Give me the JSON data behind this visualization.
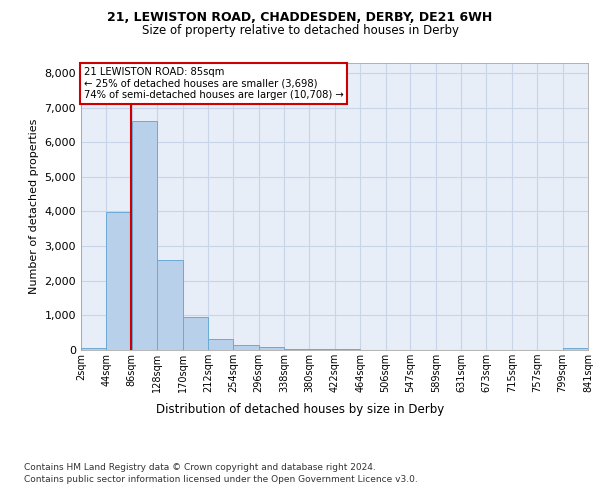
{
  "title1": "21, LEWISTON ROAD, CHADDESDEN, DERBY, DE21 6WH",
  "title2": "Size of property relative to detached houses in Derby",
  "xlabel": "Distribution of detached houses by size in Derby",
  "ylabel": "Number of detached properties",
  "bin_edges": [
    2,
    44,
    86,
    128,
    170,
    212,
    254,
    296,
    338,
    380,
    422,
    464,
    506,
    547,
    589,
    631,
    673,
    715,
    757,
    799,
    841
  ],
  "bin_counts": [
    55,
    3980,
    6620,
    2600,
    950,
    320,
    155,
    80,
    40,
    20,
    15,
    8,
    6,
    5,
    4,
    3,
    3,
    2,
    2,
    70
  ],
  "bar_color": "#b8d0ea",
  "bar_edge_color": "#6aaad4",
  "vline_color": "#cc0000",
  "vline_x": 85,
  "annotation_text": "21 LEWISTON ROAD: 85sqm\n← 25% of detached houses are smaller (3,698)\n74% of semi-detached houses are larger (10,708) →",
  "annotation_box_color": "#ffffff",
  "annotation_box_edge_color": "#cc0000",
  "ylim": [
    0,
    8300
  ],
  "yticks": [
    0,
    1000,
    2000,
    3000,
    4000,
    5000,
    6000,
    7000,
    8000
  ],
  "grid_color": "#c8d4e8",
  "background_color": "#e8eef8",
  "footer1": "Contains HM Land Registry data © Crown copyright and database right 2024.",
  "footer2": "Contains public sector information licensed under the Open Government Licence v3.0."
}
